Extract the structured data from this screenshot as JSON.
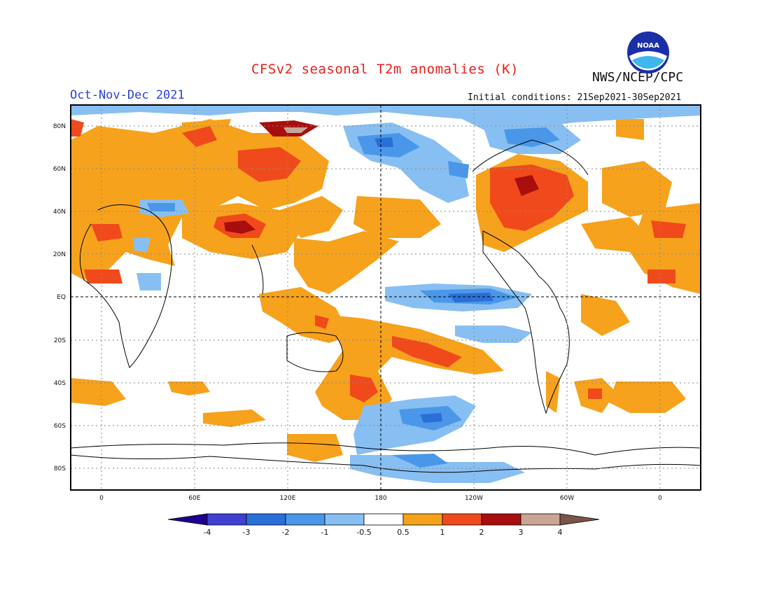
{
  "header": {
    "title": "CFSv2 seasonal T2m anomalies (K)",
    "agency": "NWS/NCEP/CPC",
    "period": "Oct-Nov-Dec 2021",
    "initial_conditions": "Initial conditions: 21Sep2021-30Sep2021",
    "logo_text": "NOAA"
  },
  "map": {
    "lat_labels": [
      "80N",
      "60N",
      "40N",
      "20N",
      "EQ",
      "20S",
      "40S",
      "60S",
      "80S"
    ],
    "lon_labels": [
      "0",
      "60E",
      "120E",
      "180",
      "120W",
      "60W",
      "0"
    ]
  },
  "colorbar": {
    "labels": [
      "-4",
      "-3",
      "-2",
      "-1",
      "-0.5",
      "0.5",
      "1",
      "2",
      "3",
      "4"
    ],
    "colors": [
      "#1e0090",
      "#3f3fd0",
      "#2a6fd8",
      "#4a97ea",
      "#88bff2",
      "#ffffff",
      "#f6a21c",
      "#f04a1c",
      "#a80e0e",
      "#c9a596",
      "#7b5548"
    ]
  }
}
